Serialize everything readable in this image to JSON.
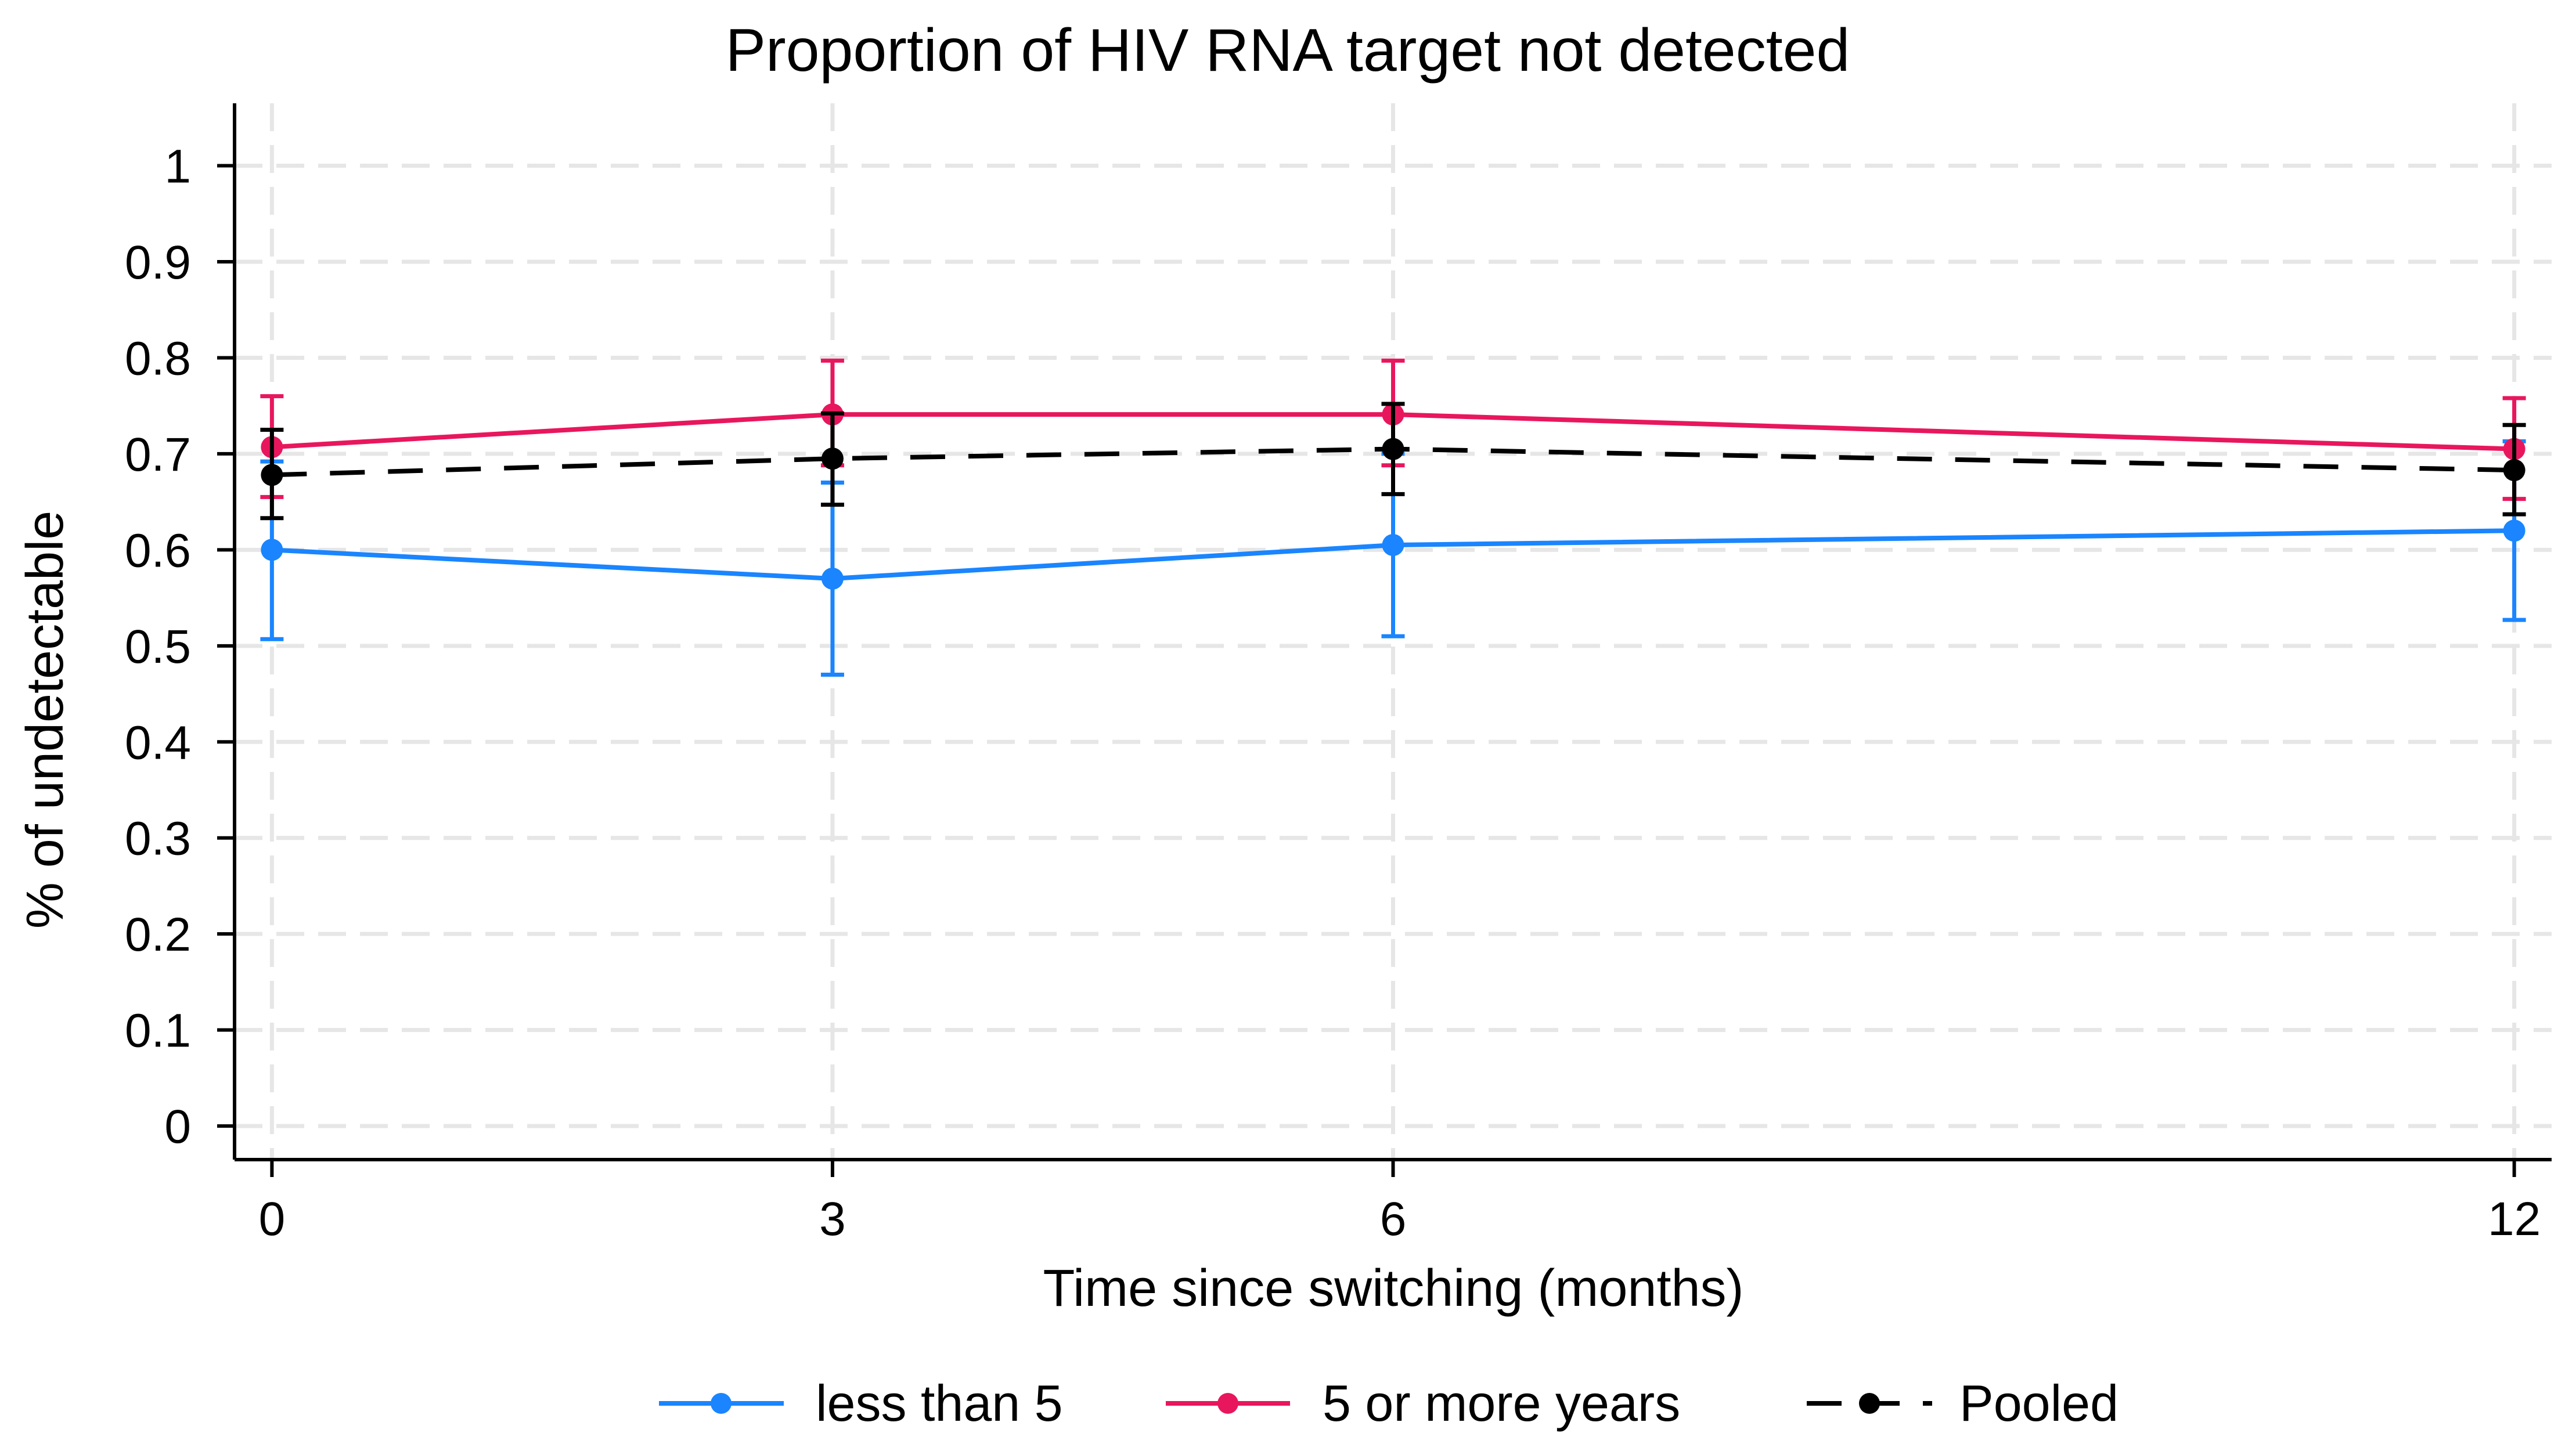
{
  "chart_data": {
    "type": "line",
    "title": "Proportion of HIV RNA target not detected",
    "xlabel": "Time since switching (months)",
    "ylabel": "% of undetectable",
    "x": [
      0,
      3,
      6,
      12
    ],
    "x_ticks": [
      0,
      3,
      6,
      12
    ],
    "y_ticks": [
      0,
      0.1,
      0.2,
      0.3,
      0.4,
      0.5,
      0.6,
      0.7,
      0.8,
      0.9,
      1
    ],
    "xlim": [
      -0.2,
      12.2
    ],
    "ylim": [
      -0.035,
      1.065
    ],
    "grid": true,
    "legend_position": "bottom",
    "series": [
      {
        "name": "less than 5",
        "color": "#1a85ff",
        "line_style": "solid",
        "values": [
          0.6,
          0.57,
          0.605,
          0.62
        ],
        "ci_low": [
          0.507,
          0.47,
          0.51,
          0.527
        ],
        "ci_high": [
          0.692,
          0.67,
          0.7,
          0.713
        ]
      },
      {
        "name": "5 or more years",
        "color": "#e8175d",
        "line_style": "solid",
        "values": [
          0.707,
          0.741,
          0.741,
          0.705
        ],
        "ci_low": [
          0.655,
          0.688,
          0.688,
          0.653
        ],
        "ci_high": [
          0.76,
          0.797,
          0.797,
          0.758
        ]
      },
      {
        "name": "Pooled",
        "color": "#000000",
        "line_style": "dashed",
        "values": [
          0.678,
          0.695,
          0.705,
          0.683
        ],
        "ci_low": [
          0.633,
          0.647,
          0.658,
          0.637
        ],
        "ci_high": [
          0.725,
          0.742,
          0.752,
          0.73
        ]
      }
    ]
  }
}
